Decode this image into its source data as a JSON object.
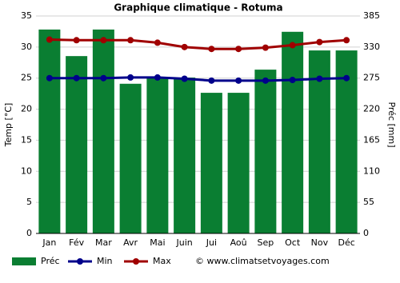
{
  "chart_data": {
    "type": "climate",
    "title": "Graphique climatique - Rotuma",
    "ylabel": "Temp [°C]",
    "y2label": "Préc [mm]",
    "categories": [
      "Jan",
      "Fév",
      "Mar",
      "Avr",
      "Mai",
      "Juin",
      "Jui",
      "Aoû",
      "Sep",
      "Oct",
      "Nov",
      "Déc"
    ],
    "series": [
      {
        "name": "Préc",
        "kind": "bar",
        "axis": "y2",
        "color": "#0a7e32",
        "values": [
          361,
          314,
          361,
          265,
          276,
          276,
          249,
          249,
          290,
          357,
          324,
          324
        ]
      },
      {
        "name": "Min",
        "kind": "line",
        "color": "#00008b",
        "values": [
          25.0,
          25.0,
          25.0,
          25.1,
          25.1,
          24.9,
          24.6,
          24.6,
          24.6,
          24.7,
          24.9,
          25.0
        ]
      },
      {
        "name": "Max",
        "kind": "line",
        "color": "#a00000",
        "values": [
          31.2,
          31.1,
          31.1,
          31.1,
          30.7,
          30.0,
          29.7,
          29.7,
          29.9,
          30.3,
          30.8,
          31.1
        ]
      }
    ],
    "ylim": [
      0,
      35
    ],
    "yticks": [
      0,
      5,
      10,
      15,
      20,
      25,
      30,
      35
    ],
    "y2lim": [
      0,
      385
    ],
    "y2ticks": [
      0,
      55,
      110,
      165,
      220,
      275,
      330,
      385
    ],
    "grid": true,
    "credit": "© www.climatsetvoyages.com"
  }
}
